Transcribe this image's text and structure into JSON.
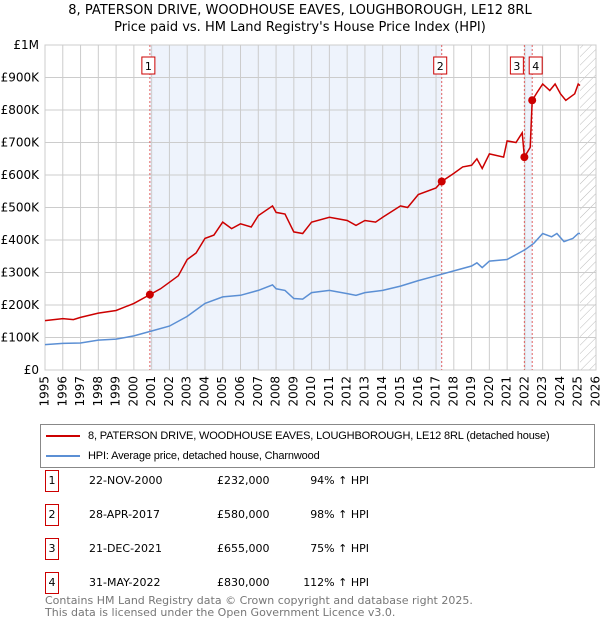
{
  "title": "8, PATERSON DRIVE, WOODHOUSE EAVES, LOUGHBOROUGH, LE12 8RL",
  "subtitle": "Price paid vs. HM Land Registry's House Price Index (HPI)",
  "chart_data": {
    "type": "line",
    "xlim": [
      1995,
      2026
    ],
    "ylim": [
      0,
      1000000
    ],
    "yticks": [
      {
        "v": 0,
        "label": "£0"
      },
      {
        "v": 100000,
        "label": "£100K"
      },
      {
        "v": 200000,
        "label": "£200K"
      },
      {
        "v": 300000,
        "label": "£300K"
      },
      {
        "v": 400000,
        "label": "£400K"
      },
      {
        "v": 500000,
        "label": "£500K"
      },
      {
        "v": 600000,
        "label": "£600K"
      },
      {
        "v": 700000,
        "label": "£700K"
      },
      {
        "v": 800000,
        "label": "£800K"
      },
      {
        "v": 900000,
        "label": "£900K"
      },
      {
        "v": 1000000,
        "label": "£1M"
      }
    ],
    "xticks": [
      "1995",
      "1996",
      "1997",
      "1998",
      "1999",
      "2000",
      "2001",
      "2002",
      "2003",
      "2004",
      "2005",
      "2006",
      "2007",
      "2008",
      "2009",
      "2010",
      "2011",
      "2012",
      "2013",
      "2014",
      "2015",
      "2016",
      "2017",
      "2018",
      "2019",
      "2020",
      "2021",
      "2022",
      "2023",
      "2024",
      "2025",
      "2026"
    ],
    "grid": true,
    "forecast_from": 2025.1,
    "shaded_ranges": [
      [
        2000.9,
        2017.32
      ],
      [
        2021.97,
        2022.41
      ]
    ],
    "series": [
      {
        "name": "8, PATERSON DRIVE, WOODHOUSE EAVES, LOUGHBOROUGH, LE12 8RL (detached house)",
        "color": "#cc0000",
        "x": [
          1995,
          1996,
          1996.6,
          1997,
          1998,
          1999,
          2000,
          2000.9,
          2001.5,
          2002,
          2002.5,
          2003,
          2003.5,
          2004,
          2004.5,
          2005,
          2005.5,
          2006,
          2006.6,
          2007,
          2007.8,
          2008,
          2008.5,
          2009,
          2009.5,
          2010,
          2011,
          2012,
          2012.5,
          2013,
          2013.6,
          2014,
          2015,
          2015.4,
          2016,
          2017,
          2017.32,
          2018,
          2018.5,
          2019,
          2019.3,
          2019.6,
          2020,
          2020.8,
          2021,
          2021.5,
          2021.85,
          2021.97,
          2022.3,
          2022.41,
          2022.7,
          2023,
          2023.4,
          2023.7,
          2024,
          2024.3,
          2024.8,
          2025,
          2025.1
        ],
        "y": [
          152000,
          158000,
          155000,
          162000,
          175000,
          183000,
          205000,
          232000,
          250000,
          270000,
          290000,
          340000,
          360000,
          405000,
          415000,
          455000,
          435000,
          450000,
          440000,
          475000,
          505000,
          485000,
          480000,
          425000,
          420000,
          455000,
          470000,
          460000,
          445000,
          460000,
          455000,
          470000,
          505000,
          500000,
          540000,
          560000,
          580000,
          605000,
          625000,
          630000,
          650000,
          620000,
          665000,
          655000,
          705000,
          700000,
          730000,
          655000,
          685000,
          830000,
          855000,
          880000,
          860000,
          880000,
          850000,
          830000,
          850000,
          880000,
          875000
        ]
      },
      {
        "name": "HPI: Average price, detached house, Charnwood",
        "color": "#5b8fd4",
        "x": [
          1995,
          1996,
          1997,
          1998,
          1999,
          2000,
          2001,
          2002,
          2003,
          2004,
          2005,
          2006,
          2007,
          2007.8,
          2008,
          2008.5,
          2009,
          2009.5,
          2010,
          2011,
          2012,
          2012.5,
          2013,
          2014,
          2015,
          2016,
          2017,
          2018,
          2019,
          2019.3,
          2019.6,
          2020,
          2021,
          2021.5,
          2022,
          2022.5,
          2023,
          2023.5,
          2023.8,
          2024.2,
          2024.7,
          2025,
          2025.1
        ],
        "y": [
          78000,
          82000,
          83000,
          92000,
          95000,
          105000,
          120000,
          135000,
          165000,
          205000,
          225000,
          230000,
          245000,
          262000,
          250000,
          245000,
          220000,
          218000,
          238000,
          245000,
          235000,
          230000,
          238000,
          245000,
          258000,
          275000,
          290000,
          305000,
          320000,
          330000,
          315000,
          335000,
          340000,
          355000,
          370000,
          390000,
          420000,
          410000,
          420000,
          395000,
          405000,
          420000,
          420000
        ]
      }
    ],
    "sales": [
      {
        "n": "1",
        "x": 2000.9,
        "y": 232000
      },
      {
        "n": "2",
        "x": 2017.32,
        "y": 580000
      },
      {
        "n": "3",
        "x": 2021.97,
        "y": 655000
      },
      {
        "n": "4",
        "x": 2022.41,
        "y": 830000
      }
    ]
  },
  "legend": {
    "property": "8, PATERSON DRIVE, WOODHOUSE EAVES, LOUGHBOROUGH, LE12 8RL (detached house)",
    "hpi": "HPI: Average price, detached house, Charnwood"
  },
  "transactions": [
    {
      "n": "1",
      "date": "22-NOV-2000",
      "price": "£232,000",
      "hpi": "94% ↑ HPI"
    },
    {
      "n": "2",
      "date": "28-APR-2017",
      "price": "£580,000",
      "hpi": "98% ↑ HPI"
    },
    {
      "n": "3",
      "date": "21-DEC-2021",
      "price": "£655,000",
      "hpi": "75% ↑ HPI"
    },
    {
      "n": "4",
      "date": "31-MAY-2022",
      "price": "£830,000",
      "hpi": "112% ↑ HPI"
    }
  ],
  "footer": [
    "Contains HM Land Registry data © Crown copyright and database right 2025.",
    "This data is licensed under the Open Government Licence v3.0."
  ]
}
